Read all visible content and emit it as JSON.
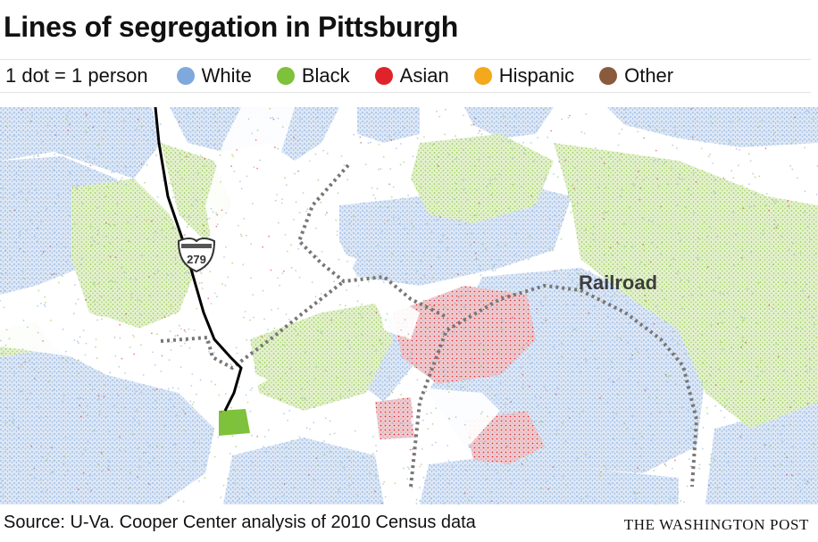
{
  "title": "Lines of segregation in Pittsburgh",
  "legend": {
    "note": "1 dot = 1 person",
    "items": [
      {
        "label": "White",
        "color": "#7fa8dc",
        "icon": "dot-icon"
      },
      {
        "label": "Black",
        "color": "#7ec13a",
        "icon": "dot-icon"
      },
      {
        "label": "Asian",
        "color": "#e0232b",
        "icon": "dot-icon"
      },
      {
        "label": "Hispanic",
        "color": "#f4a81c",
        "icon": "dot-icon"
      },
      {
        "label": "Other",
        "color": "#8a5a3c",
        "icon": "dot-icon"
      }
    ]
  },
  "map": {
    "railroad_label": "Railroad",
    "highway_shield": "279",
    "railroad_color": "#777777",
    "highway_color": "#000000",
    "river_color": "#ffffff"
  },
  "footer": {
    "source": "Source: U-Va. Cooper Center analysis of 2010 Census data",
    "credit": "THE WASHINGTON POST"
  }
}
